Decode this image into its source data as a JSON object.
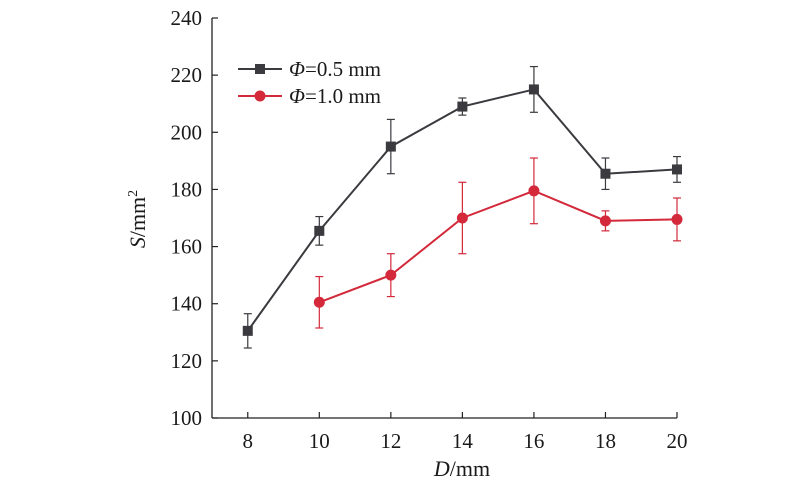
{
  "chart_data": {
    "type": "line",
    "x_axis": {
      "var": "D",
      "unit": "/mm",
      "ticks": [
        8,
        10,
        12,
        14,
        16,
        18,
        20
      ],
      "range": [
        7,
        20
      ]
    },
    "y_axis": {
      "var": "S",
      "unit": "/mm",
      "unit_sup": "2",
      "ticks": [
        100,
        120,
        140,
        160,
        180,
        200,
        220,
        240
      ],
      "range": [
        100,
        240
      ]
    },
    "legend": {
      "position": "top-left"
    },
    "grid": false,
    "series": [
      {
        "name_symbol": "Φ",
        "name_rest": "=0.5 mm",
        "color": "#3a3a3f",
        "marker": "square",
        "x": [
          8,
          10,
          12,
          14,
          16,
          18,
          20
        ],
        "y": [
          130.5,
          165.5,
          195,
          209,
          215,
          185.5,
          187
        ],
        "err": [
          6,
          5,
          9.5,
          3,
          8,
          5.5,
          4.5
        ]
      },
      {
        "name_symbol": "Φ",
        "name_rest": "=1.0 mm",
        "color": "#d3293a",
        "marker": "circle",
        "x": [
          10,
          12,
          14,
          16,
          18,
          20
        ],
        "y": [
          140.5,
          150,
          170,
          179.5,
          169,
          169.5
        ],
        "err": [
          9,
          7.5,
          12.5,
          11.5,
          3.5,
          7.5
        ]
      }
    ]
  }
}
